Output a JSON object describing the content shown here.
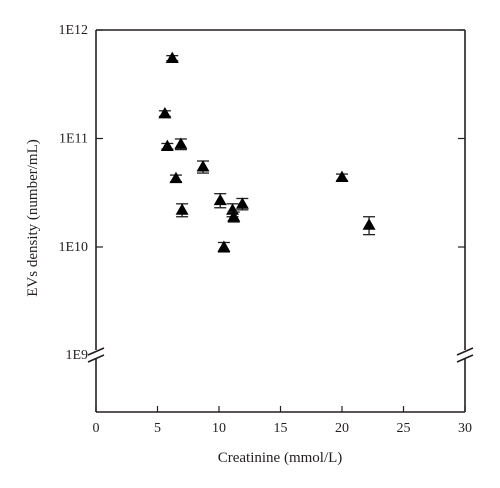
{
  "chart_data": {
    "type": "scatter",
    "xlabel": "Creatinine (mmol/L)",
    "ylabel": "EVs density (number/mL)",
    "xlim": [
      0,
      30
    ],
    "xticks": [
      0,
      5,
      10,
      15,
      20,
      25,
      30
    ],
    "y_scale": "log",
    "ylim": [
      1000000000.0,
      1000000000000.0
    ],
    "y_axis_break": true,
    "yticks": [
      {
        "value": 1000000000.0,
        "label": "1E9"
      },
      {
        "value": 10000000000.0,
        "label": "1E10"
      },
      {
        "value": 100000000000.0,
        "label": "1E11"
      },
      {
        "value": 1000000000000.0,
        "label": "1E12"
      }
    ],
    "marker": "filled-triangle",
    "points": [
      {
        "x": 6.2,
        "y": 550000000000.0,
        "err": 30000000000.0
      },
      {
        "x": 5.6,
        "y": 170000000000.0,
        "err": 10000000000.0
      },
      {
        "x": 5.8,
        "y": 85000000000.0,
        "err": 5000000000.0
      },
      {
        "x": 6.9,
        "y": 89000000000.0,
        "err": 10000000000.0
      },
      {
        "x": 6.5,
        "y": 43000000000.0,
        "err": 3000000000.0
      },
      {
        "x": 8.7,
        "y": 55000000000.0,
        "err": 7000000000.0
      },
      {
        "x": 7.0,
        "y": 22000000000.0,
        "err": 3000000000.0
      },
      {
        "x": 10.1,
        "y": 27000000000.0,
        "err": 4000000000.0
      },
      {
        "x": 11.1,
        "y": 22000000000.0,
        "err": 3000000000.0
      },
      {
        "x": 11.2,
        "y": 19000000000.0,
        "err": 2000000000.0
      },
      {
        "x": 11.9,
        "y": 25000000000.0,
        "err": 3000000000.0
      },
      {
        "x": 10.4,
        "y": 10000000000.0,
        "err": 1000000000.0
      },
      {
        "x": 20.0,
        "y": 44000000000.0,
        "err": 3000000000.0
      },
      {
        "x": 22.2,
        "y": 16000000000.0,
        "err": 3000000000.0
      }
    ]
  }
}
